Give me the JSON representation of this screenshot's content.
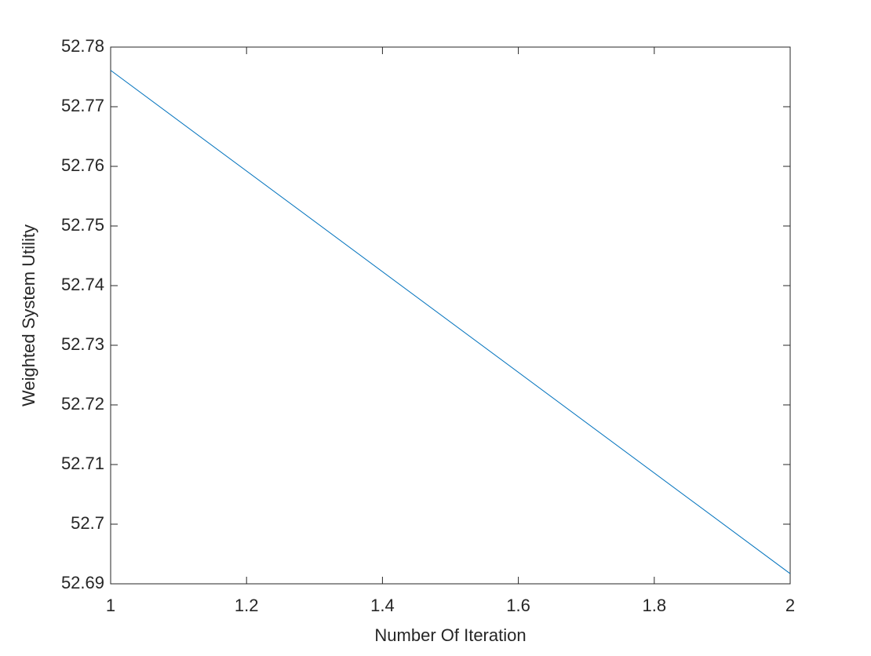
{
  "chart_data": {
    "type": "line",
    "x_label": "Number Of Iteration",
    "y_label": "Weighted System Utility",
    "x": [
      1,
      2
    ],
    "series": [
      {
        "color": "#0072bd",
        "values": [
          52.7761,
          52.6917
        ]
      }
    ],
    "xlim": [
      1,
      2
    ],
    "xticks": [
      1,
      1.2,
      1.4,
      1.6,
      1.8,
      2
    ],
    "ylim": [
      52.69,
      52.78
    ],
    "yticks": [
      52.69,
      52.7,
      52.71,
      52.72,
      52.73,
      52.74,
      52.75,
      52.76,
      52.77,
      52.78
    ],
    "grid": false
  }
}
